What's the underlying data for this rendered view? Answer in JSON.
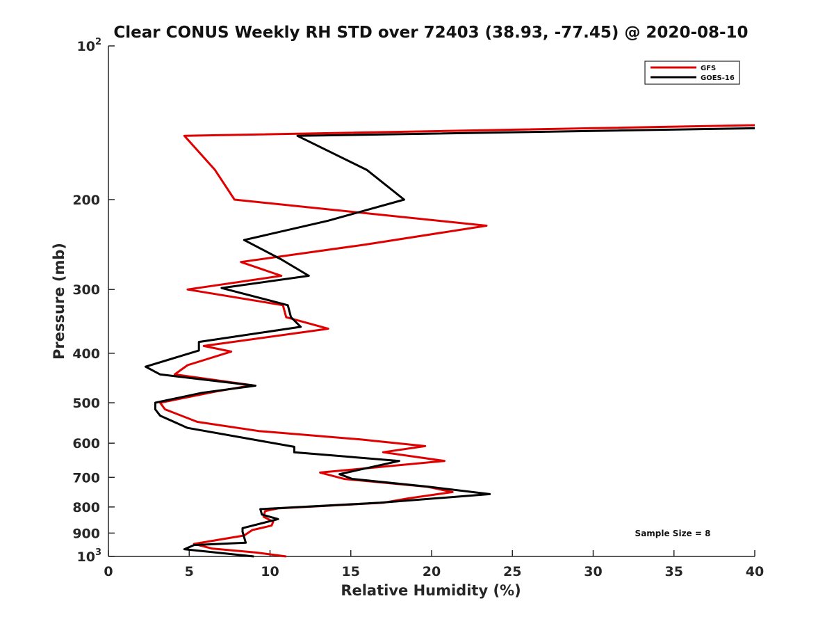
{
  "chart_data": {
    "type": "line",
    "title": "Clear CONUS Weekly RH STD over 72403 (38.93, -77.45) @ 2020-08-10",
    "xlabel": "Relative Humidity (%)",
    "ylabel": "Pressure (mb)",
    "xlim": [
      0,
      40
    ],
    "ylim": [
      100,
      1000
    ],
    "y_scale": "log",
    "y_reversed": true,
    "grid": false,
    "legend_position": "top-right",
    "x_ticks": [
      "0",
      "5",
      "10",
      "15",
      "20",
      "25",
      "30",
      "35",
      "40"
    ],
    "y_ticks": [
      {
        "value": 100,
        "base": "10",
        "exp": "2"
      },
      {
        "value": 200,
        "label": "200"
      },
      {
        "value": 300,
        "label": "300"
      },
      {
        "value": 400,
        "label": "400"
      },
      {
        "value": 500,
        "label": "500"
      },
      {
        "value": 600,
        "label": "600"
      },
      {
        "value": 700,
        "label": "700"
      },
      {
        "value": 800,
        "label": "800"
      },
      {
        "value": 900,
        "label": "900"
      },
      {
        "value": 1000,
        "base": "10",
        "exp": "3"
      }
    ],
    "annotation": "Sample Size = 8",
    "series": [
      {
        "name": "GFS",
        "color": "#e00000",
        "points": [
          [
            40.0,
            143
          ],
          [
            4.7,
            150
          ],
          [
            6.6,
            175
          ],
          [
            7.8,
            200
          ],
          [
            23.4,
            225
          ],
          [
            15.9,
            245
          ],
          [
            8.2,
            265
          ],
          [
            10.7,
            282
          ],
          [
            4.9,
            300
          ],
          [
            10.8,
            322
          ],
          [
            11.0,
            340
          ],
          [
            13.6,
            358
          ],
          [
            5.9,
            387
          ],
          [
            7.6,
            397
          ],
          [
            4.9,
            422
          ],
          [
            4.1,
            440
          ],
          [
            8.9,
            462
          ],
          [
            6.7,
            475
          ],
          [
            3.2,
            500
          ],
          [
            3.5,
            515
          ],
          [
            5.5,
            545
          ],
          [
            9.3,
            568
          ],
          [
            15.6,
            590
          ],
          [
            19.6,
            608
          ],
          [
            17.0,
            625
          ],
          [
            20.8,
            650
          ],
          [
            13.1,
            685
          ],
          [
            14.6,
            705
          ],
          [
            19.7,
            730
          ],
          [
            21.3,
            748
          ],
          [
            18.5,
            770
          ],
          [
            17.0,
            785
          ],
          [
            10.5,
            805
          ],
          [
            9.7,
            815
          ],
          [
            9.6,
            836
          ],
          [
            10.2,
            855
          ],
          [
            10.1,
            870
          ],
          [
            8.9,
            888
          ],
          [
            8.4,
            910
          ],
          [
            5.3,
            945
          ],
          [
            6.4,
            965
          ],
          [
            9.2,
            983
          ],
          [
            11.0,
            1000
          ]
        ]
      },
      {
        "name": "GOES-16",
        "color": "#000000",
        "points": [
          [
            40.0,
            145
          ],
          [
            11.7,
            150
          ],
          [
            16.0,
            175
          ],
          [
            18.3,
            200
          ],
          [
            13.6,
            220
          ],
          [
            8.4,
            240
          ],
          [
            10.7,
            262
          ],
          [
            12.4,
            282
          ],
          [
            7.0,
            298
          ],
          [
            11.1,
            322
          ],
          [
            11.3,
            340
          ],
          [
            11.9,
            355
          ],
          [
            5.6,
            380
          ],
          [
            5.6,
            395
          ],
          [
            2.3,
            425
          ],
          [
            3.2,
            440
          ],
          [
            9.1,
            463
          ],
          [
            5.8,
            478
          ],
          [
            2.9,
            500
          ],
          [
            2.9,
            515
          ],
          [
            3.2,
            530
          ],
          [
            4.9,
            560
          ],
          [
            11.5,
            610
          ],
          [
            11.5,
            625
          ],
          [
            18.0,
            650
          ],
          [
            14.3,
            690
          ],
          [
            15.1,
            705
          ],
          [
            19.8,
            730
          ],
          [
            23.6,
            755
          ],
          [
            16.8,
            785
          ],
          [
            9.4,
            808
          ],
          [
            9.5,
            828
          ],
          [
            10.5,
            845
          ],
          [
            8.3,
            880
          ],
          [
            8.3,
            895
          ],
          [
            8.5,
            940
          ],
          [
            5.3,
            950
          ],
          [
            4.7,
            968
          ],
          [
            9.0,
            1000
          ]
        ]
      }
    ]
  }
}
